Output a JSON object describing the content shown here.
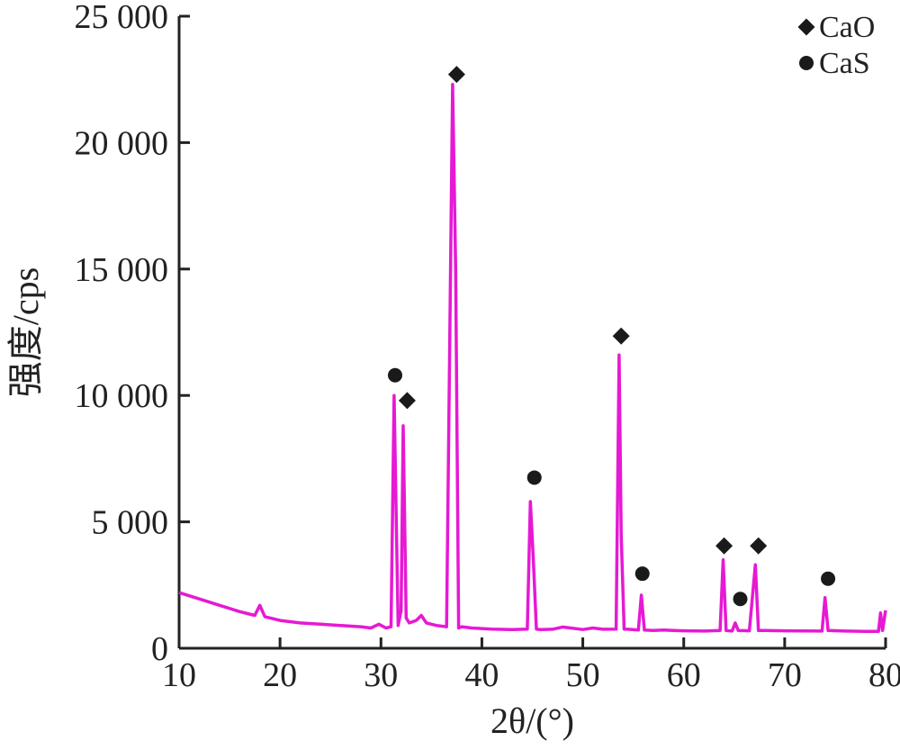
{
  "chart_data": {
    "type": "line",
    "xlabel": "2θ/(°)",
    "ylabel": "强度/cps",
    "xlim": [
      10,
      80
    ],
    "ylim": [
      0,
      25000
    ],
    "x_ticks": [
      10,
      20,
      30,
      40,
      50,
      60,
      70,
      80
    ],
    "y_ticks": [
      0,
      5000,
      10000,
      15000,
      20000,
      25000
    ],
    "x_tick_labels": [
      "10",
      "20",
      "30",
      "40",
      "50",
      "60",
      "70",
      "80"
    ],
    "y_tick_labels": [
      "0",
      "5 000",
      "10 000",
      "15 000",
      "20 000",
      "25 000"
    ],
    "grid": false,
    "legend_position": "top-right",
    "line_color": "#e619d4",
    "marker_color": "#1a1a1a",
    "legend": [
      {
        "label": "CaO",
        "marker": "diamond"
      },
      {
        "label": "CaS",
        "marker": "circle"
      }
    ],
    "series": [
      {
        "x": [
          10,
          12,
          14,
          16,
          17.5,
          18,
          18.5,
          20,
          22,
          24,
          26,
          28,
          29,
          29.8,
          30.5,
          31,
          31.3,
          31.5,
          31.7,
          32,
          32.2,
          32.5,
          32.8,
          33.5,
          34,
          34.5,
          35.5,
          36.5,
          37.1,
          37.4,
          37.7,
          38,
          39,
          41,
          43,
          44.5,
          44.8,
          45.1,
          45.4,
          45.8,
          47,
          48,
          50,
          51,
          52,
          53.3,
          53.6,
          53.8,
          54.1,
          54.5,
          55.5,
          55.8,
          56.1,
          57,
          58,
          59,
          60,
          62,
          63.6,
          63.9,
          64.2,
          64.8,
          65.1,
          65.4,
          66.5,
          67.1,
          67.4,
          68,
          70,
          73.7,
          74.0,
          74.3,
          76,
          78,
          79.3,
          79.5,
          79.7,
          80
        ],
        "y": [
          2200,
          1950,
          1700,
          1450,
          1300,
          1700,
          1250,
          1100,
          1000,
          950,
          900,
          850,
          800,
          950,
          800,
          850,
          10000,
          5500,
          900,
          1500,
          8800,
          1200,
          1000,
          1100,
          1300,
          1000,
          900,
          850,
          22300,
          15000,
          800,
          850,
          800,
          760,
          740,
          760,
          5800,
          3500,
          760,
          740,
          750,
          840,
          740,
          800,
          750,
          760,
          11600,
          4500,
          760,
          750,
          720,
          2100,
          720,
          700,
          720,
          700,
          690,
          680,
          700,
          3500,
          700,
          680,
          1000,
          700,
          690,
          3300,
          700,
          700,
          690,
          680,
          2000,
          700,
          680,
          670,
          670,
          1400,
          700,
          1500
        ]
      }
    ],
    "annotations": [
      {
        "marker": "circle",
        "x": 31.4,
        "y": 10800
      },
      {
        "marker": "diamond",
        "x": 32.6,
        "y": 9800
      },
      {
        "marker": "diamond",
        "x": 37.5,
        "y": 22700
      },
      {
        "marker": "circle",
        "x": 45.2,
        "y": 6750
      },
      {
        "marker": "diamond",
        "x": 53.8,
        "y": 12350
      },
      {
        "marker": "circle",
        "x": 55.9,
        "y": 2950
      },
      {
        "marker": "diamond",
        "x": 64.0,
        "y": 4050
      },
      {
        "marker": "circle",
        "x": 65.6,
        "y": 1950
      },
      {
        "marker": "diamond",
        "x": 67.4,
        "y": 4050
      },
      {
        "marker": "circle",
        "x": 74.3,
        "y": 2750
      }
    ]
  }
}
